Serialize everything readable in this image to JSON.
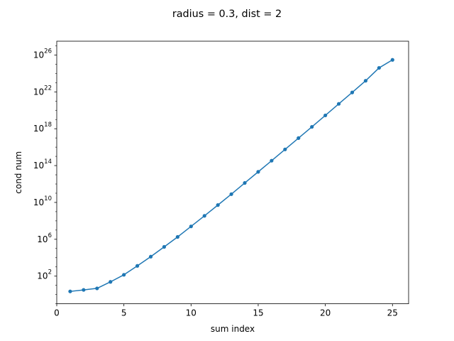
{
  "chart_data": {
    "type": "line",
    "title": "radius = 0.3, dist = 2",
    "xlabel": "sum index",
    "ylabel": "cond num",
    "xscale": "linear",
    "yscale": "log",
    "xlim": [
      0,
      26.2
    ],
    "ylim": [
      0.1,
      3.16e+27
    ],
    "xticks": [
      0,
      5,
      10,
      15,
      20,
      25
    ],
    "xtick_labels": [
      "0",
      "5",
      "10",
      "15",
      "20",
      "25"
    ],
    "yticks": [
      100.0,
      1000000.0,
      10000000000.0,
      100000000000000.0,
      1e+18,
      1e+22,
      1e+26
    ],
    "ytick_labels": [
      {
        "base": "10",
        "exp": "2"
      },
      {
        "base": "10",
        "exp": "6"
      },
      {
        "base": "10",
        "exp": "10"
      },
      {
        "base": "10",
        "exp": "14"
      },
      {
        "base": "10",
        "exp": "18"
      },
      {
        "base": "10",
        "exp": "22"
      },
      {
        "base": "10",
        "exp": "26"
      }
    ],
    "grid": false,
    "legend": "none",
    "series": [
      {
        "color": "#1f77b4",
        "marker": "circle",
        "x": [
          1,
          2,
          3,
          4,
          5,
          6,
          7,
          8,
          9,
          10,
          11,
          12,
          13,
          14,
          15,
          16,
          17,
          18,
          19,
          20,
          21,
          22,
          23,
          24,
          25
        ],
        "y": [
          2.2,
          3.2,
          4.7,
          24.0,
          140.0,
          1300.0,
          13000.0,
          150000.0,
          1800000.0,
          25000000.0,
          350000000.0,
          5200000000.0,
          79000000000.0,
          1300000000000.0,
          21000000000000.0,
          340000000000000.0,
          5700000000000000.0,
          9.6e+16,
          1.6e+18,
          2.8e+19,
          5e+20,
          8.7e+21,
          1.6e+23,
          4e+24,
          3e+25
        ]
      }
    ]
  }
}
